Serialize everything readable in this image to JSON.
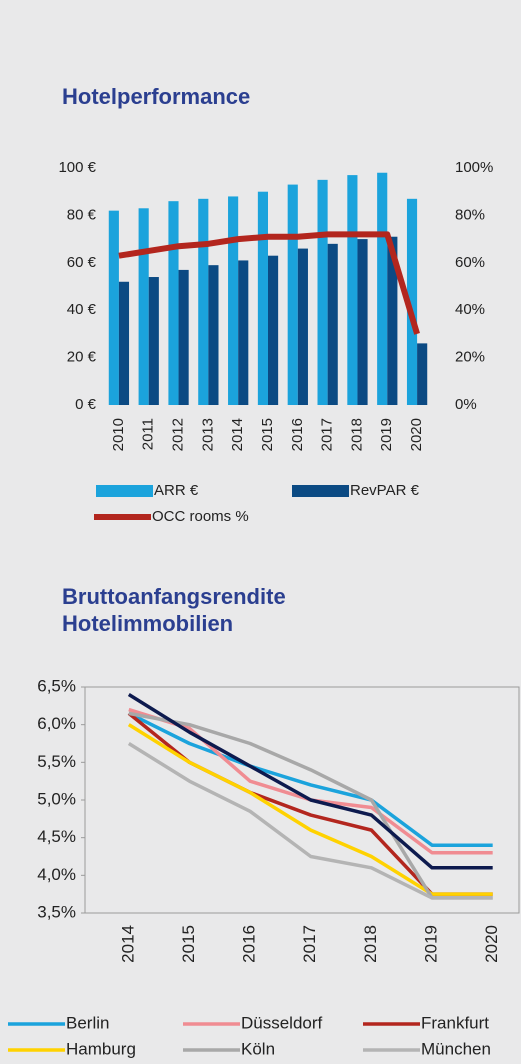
{
  "chart_data": [
    {
      "type": "bar",
      "title": "Hotelperformance",
      "categories": [
        "2010",
        "2011",
        "2012",
        "2013",
        "2014",
        "2015",
        "2016",
        "2017",
        "2018",
        "2019",
        "2020"
      ],
      "series": [
        {
          "name": "ARR €",
          "color": "#1ba3dc",
          "values": [
            82,
            83,
            86,
            87,
            88,
            90,
            93,
            95,
            97,
            98,
            87
          ]
        },
        {
          "name": "RevPAR €",
          "color": "#0b4a83",
          "values": [
            52,
            54,
            57,
            59,
            61,
            63,
            66,
            68,
            70,
            71,
            26
          ]
        },
        {
          "name": "OCC rooms %",
          "color": "#b3261e",
          "type": "line",
          "axis": "y2",
          "values": [
            63,
            65,
            67,
            68,
            70,
            71,
            71,
            72,
            72,
            72,
            30
          ]
        }
      ],
      "ylim": [
        0,
        100
      ],
      "yticks": [
        {
          "value": 0,
          "label": "0 €"
        },
        {
          "value": 20,
          "label": "20 €"
        },
        {
          "value": 40,
          "label": "40 €"
        },
        {
          "value": 60,
          "label": "60 €"
        },
        {
          "value": 80,
          "label": "80 €"
        },
        {
          "value": 100,
          "label": "100 €"
        }
      ],
      "y2lim": [
        0,
        100
      ],
      "y2ticks": [
        {
          "value": 0,
          "label": "0%"
        },
        {
          "value": 20,
          "label": "20%"
        },
        {
          "value": 40,
          "label": "40%"
        },
        {
          "value": 60,
          "label": "60%"
        },
        {
          "value": 80,
          "label": "80%"
        },
        {
          "value": 100,
          "label": "100%"
        }
      ]
    },
    {
      "type": "line",
      "title": "Bruttoanfangsrendite Hotelimmobilien",
      "categories": [
        "2014",
        "2015",
        "2016",
        "2017",
        "2018",
        "2019",
        "2020"
      ],
      "series": [
        {
          "name": "Berlin",
          "color": "#1ba3dc",
          "values": [
            6.15,
            5.75,
            5.45,
            5.2,
            5.0,
            4.4,
            4.4
          ]
        },
        {
          "name": "Düsseldorf",
          "color": "#f08c92",
          "values": [
            6.2,
            5.95,
            5.25,
            5.0,
            4.9,
            4.3,
            4.3
          ]
        },
        {
          "name": "Frankfurt",
          "color": "#b3261e",
          "values": [
            6.15,
            5.5,
            5.1,
            4.8,
            4.6,
            3.75,
            3.75
          ]
        },
        {
          "name": "Hamburg",
          "color": "#ffd200",
          "values": [
            6.0,
            5.5,
            5.1,
            4.6,
            4.25,
            3.75,
            3.75
          ]
        },
        {
          "name": "Köln",
          "color": "#a8a8a8",
          "values": [
            6.15,
            6.0,
            5.75,
            5.4,
            5.0,
            3.7,
            3.7
          ]
        },
        {
          "name": "München",
          "color": "#b4b4b4",
          "values": [
            5.75,
            5.25,
            4.85,
            4.25,
            4.1,
            3.7,
            3.7
          ]
        },
        {
          "color": "#0d1a4e",
          "values": [
            6.4,
            5.9,
            5.45,
            5.0,
            4.8,
            4.1,
            4.1
          ]
        }
      ],
      "ylim": [
        3.5,
        6.5
      ],
      "yticks": [
        {
          "value": 3.5,
          "label": "3,5%"
        },
        {
          "value": 4.0,
          "label": "4,0%"
        },
        {
          "value": 4.5,
          "label": "4,5%"
        },
        {
          "value": 5.0,
          "label": "5,0%"
        },
        {
          "value": 5.5,
          "label": "5,5%"
        },
        {
          "value": 6.0,
          "label": "6,0%"
        },
        {
          "value": 6.5,
          "label": "6,5%"
        }
      ]
    }
  ]
}
